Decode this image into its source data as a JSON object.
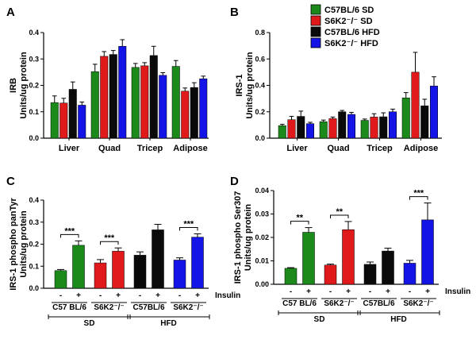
{
  "colors": {
    "C57BL/6 SD": "#1b8a1b",
    "S6K2-/- SD": "#e0191b",
    "C57BL/6 HFD": "#0a0a0a",
    "S6K2-/- HFD": "#1414e6"
  },
  "legend": [
    "C57BL/6 SD",
    "S6K2⁻/⁻ SD",
    "C57BL/6 HFD",
    "S6K2⁻/⁻ HFD"
  ],
  "chart_data": [
    {
      "panel": "A",
      "type": "bar",
      "ylabel": [
        "IRB",
        "Units/ug protein"
      ],
      "ylim": [
        0,
        0.4
      ],
      "yticks": [
        "0.0",
        "0.1",
        "0.2",
        "0.3",
        "0.4"
      ],
      "categories": [
        "Liver",
        "Quad",
        "Tricep",
        "Adipose"
      ],
      "series": [
        {
          "name": "C57BL/6 SD",
          "values": [
            0.135,
            0.252,
            0.268,
            0.272
          ],
          "errors": [
            0.025,
            0.028,
            0.015,
            0.022
          ]
        },
        {
          "name": "S6K2-/- SD",
          "values": [
            0.133,
            0.31,
            0.274,
            0.178
          ],
          "errors": [
            0.018,
            0.018,
            0.012,
            0.012
          ]
        },
        {
          "name": "C57BL/6 HFD",
          "values": [
            0.185,
            0.317,
            0.313,
            0.192
          ],
          "errors": [
            0.028,
            0.015,
            0.035,
            0.018
          ]
        },
        {
          "name": "S6K2-/- HFD",
          "values": [
            0.125,
            0.348,
            0.238,
            0.225
          ],
          "errors": [
            0.012,
            0.025,
            0.01,
            0.01
          ]
        }
      ]
    },
    {
      "panel": "B",
      "type": "bar",
      "ylabel": [
        "IRS-1",
        "Units/ug protein"
      ],
      "ylim": [
        0,
        0.8
      ],
      "yticks": [
        "0.0",
        "0.2",
        "0.4",
        "0.6",
        "0.8"
      ],
      "categories": [
        "Liver",
        "Quad",
        "Tricep",
        "Adipose"
      ],
      "series": [
        {
          "name": "C57BL/6 SD",
          "values": [
            0.095,
            0.125,
            0.135,
            0.305
          ],
          "errors": [
            0.01,
            0.012,
            0.01,
            0.04
          ]
        },
        {
          "name": "S6K2-/- SD",
          "values": [
            0.14,
            0.148,
            0.16,
            0.5
          ],
          "errors": [
            0.025,
            0.012,
            0.025,
            0.15
          ]
        },
        {
          "name": "C57BL/6 HFD",
          "values": [
            0.165,
            0.2,
            0.162,
            0.245
          ],
          "errors": [
            0.04,
            0.01,
            0.03,
            0.05
          ]
        },
        {
          "name": "S6K2-/- HFD",
          "values": [
            0.11,
            0.18,
            0.2,
            0.395
          ],
          "errors": [
            0.01,
            0.015,
            0.02,
            0.07
          ]
        }
      ]
    },
    {
      "panel": "C",
      "type": "bar",
      "ylabel": [
        "IRS-1 phospho panTyr",
        "Units/ug protein"
      ],
      "ylim": [
        0,
        0.4
      ],
      "yticks": [
        "0.0",
        "0.1",
        "0.2",
        "0.3",
        "0.4"
      ],
      "treatment_label": "Insulin",
      "treatment_signs": [
        "-",
        "+",
        "-",
        "+",
        "-",
        "+",
        "-",
        "+"
      ],
      "genotypes": [
        "C57 BL/6",
        "S6K2⁻/⁻",
        "C57BL/6",
        "S6K2⁻/⁻"
      ],
      "diets": [
        "SD",
        "HFD"
      ],
      "significance": [
        "***",
        "***",
        "***"
      ],
      "series": [
        {
          "name": "C57BL/6 SD",
          "values": [
            0.08,
            0.195
          ],
          "errors": [
            0.005,
            0.02
          ]
        },
        {
          "name": "S6K2-/- SD",
          "values": [
            0.115,
            0.168
          ],
          "errors": [
            0.015,
            0.015
          ]
        },
        {
          "name": "C57BL/6 HFD",
          "values": [
            0.15,
            0.265
          ],
          "errors": [
            0.015,
            0.025
          ]
        },
        {
          "name": "S6K2-/- HFD",
          "values": [
            0.128,
            0.232
          ],
          "errors": [
            0.01,
            0.015
          ]
        }
      ]
    },
    {
      "panel": "D",
      "type": "bar",
      "ylabel": [
        "IRS-1 phospho Ser307",
        "Units/ug protein"
      ],
      "ylim": [
        0,
        0.04
      ],
      "yticks": [
        "0.00",
        "0.01",
        "0.02",
        "0.03",
        "0.04"
      ],
      "treatment_label": "Insulin",
      "treatment_signs": [
        "-",
        "+",
        "-",
        "+",
        "-",
        "+",
        "-",
        "+"
      ],
      "genotypes": [
        "C57 BL/6",
        "S6K2⁻/⁻",
        "C57BL/6",
        "S6K2⁻/⁻"
      ],
      "diets": [
        "SD",
        "HFD"
      ],
      "significance": [
        "**",
        "**",
        "***"
      ],
      "series": [
        {
          "name": "C57BL/6 SD",
          "values": [
            0.0068,
            0.0222
          ],
          "errors": [
            0.0003,
            0.002
          ]
        },
        {
          "name": "S6K2-/- SD",
          "values": [
            0.0082,
            0.0233
          ],
          "errors": [
            0.0004,
            0.0035
          ]
        },
        {
          "name": "C57BL/6 HFD",
          "values": [
            0.0085,
            0.0142
          ],
          "errors": [
            0.001,
            0.0012
          ]
        },
        {
          "name": "S6K2-/- HFD",
          "values": [
            0.009,
            0.0275
          ],
          "errors": [
            0.0012,
            0.0072
          ]
        }
      ]
    }
  ]
}
